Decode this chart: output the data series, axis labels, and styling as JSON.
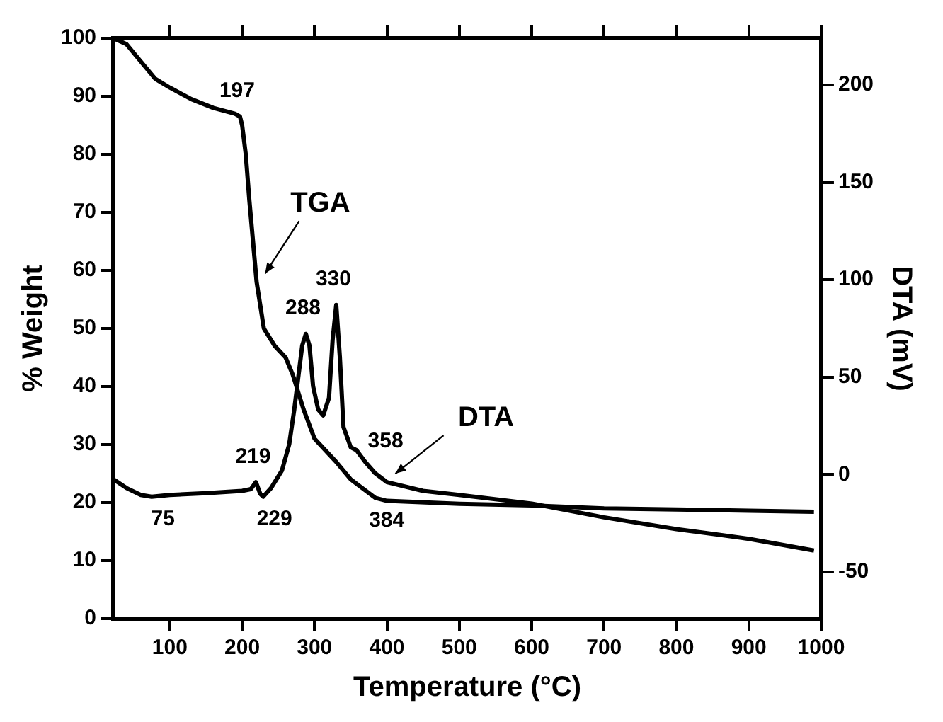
{
  "chart_data": {
    "type": "line",
    "xlabel": "Temperature (°C)",
    "ylabel": "% Weight",
    "y2label": "DTA (mV)",
    "xlim": [
      22,
      1000
    ],
    "xticks": [
      100,
      200,
      300,
      400,
      500,
      600,
      700,
      800,
      900,
      1000
    ],
    "ylim": [
      0,
      100
    ],
    "yticks": [
      0,
      10,
      20,
      30,
      40,
      50,
      60,
      70,
      80,
      90,
      100
    ],
    "y2lim": [
      -74,
      224
    ],
    "y2ticks": [
      -50,
      0,
      50,
      100,
      150,
      200
    ],
    "grid": false,
    "legend": false,
    "marker": "none",
    "line_style": "solid",
    "series": [
      {
        "name": "TGA",
        "color": "#000000",
        "x": [
          22,
          40,
          60,
          80,
          100,
          130,
          160,
          190,
          197,
          200,
          205,
          210,
          215,
          220,
          230,
          245,
          260,
          270,
          285,
          300,
          330,
          350,
          384,
          400,
          500,
          600,
          700,
          800,
          900,
          990
        ],
        "values": [
          100,
          99,
          96,
          93,
          91.5,
          89.5,
          88,
          87,
          86.5,
          85,
          80,
          72,
          65,
          58,
          50,
          47,
          45,
          42,
          36,
          31,
          27,
          24,
          20.8,
          20.3,
          19.8,
          19.5,
          19,
          18.8,
          18.6,
          18.4
        ]
      },
      {
        "name": "DTA",
        "color": "#000000",
        "axis": "y2",
        "x": [
          22,
          40,
          60,
          75,
          100,
          150,
          200,
          212,
          219,
          225,
          229,
          240,
          255,
          265,
          272,
          278,
          283,
          288,
          293,
          298,
          305,
          312,
          320,
          325,
          330,
          335,
          340,
          350,
          358,
          370,
          384,
          400,
          450,
          500,
          600,
          700,
          800,
          900,
          990
        ],
        "values": [
          -2.4,
          -6.9,
          -10.5,
          -11.4,
          -10.5,
          -9.6,
          -8.4,
          -7.5,
          -3.9,
          -9.9,
          -11.4,
          -6.9,
          2.1,
          15.5,
          33.4,
          51.3,
          66.2,
          72.2,
          66.2,
          45.3,
          33.4,
          30.4,
          39.4,
          69.2,
          87.1,
          60.2,
          24.4,
          14,
          12.5,
          6.5,
          0.6,
          -3.9,
          -8.4,
          -10.5,
          -14.9,
          -22,
          -28,
          -33,
          -39
        ]
      }
    ],
    "annotations": [
      {
        "text": "197",
        "x": 197,
        "y": 86.5
      },
      {
        "text": "75",
        "x": 75,
        "y": 21
      },
      {
        "text": "219",
        "x": 219,
        "y": 23.5
      },
      {
        "text": "229",
        "x": 229,
        "y": 21
      },
      {
        "text": "288",
        "x": 288,
        "y": 49
      },
      {
        "text": "330",
        "x": 330,
        "y": 54
      },
      {
        "text": "358",
        "x": 358,
        "y": 29
      },
      {
        "text": "384",
        "x": 384,
        "y": 20.8
      }
    ]
  }
}
